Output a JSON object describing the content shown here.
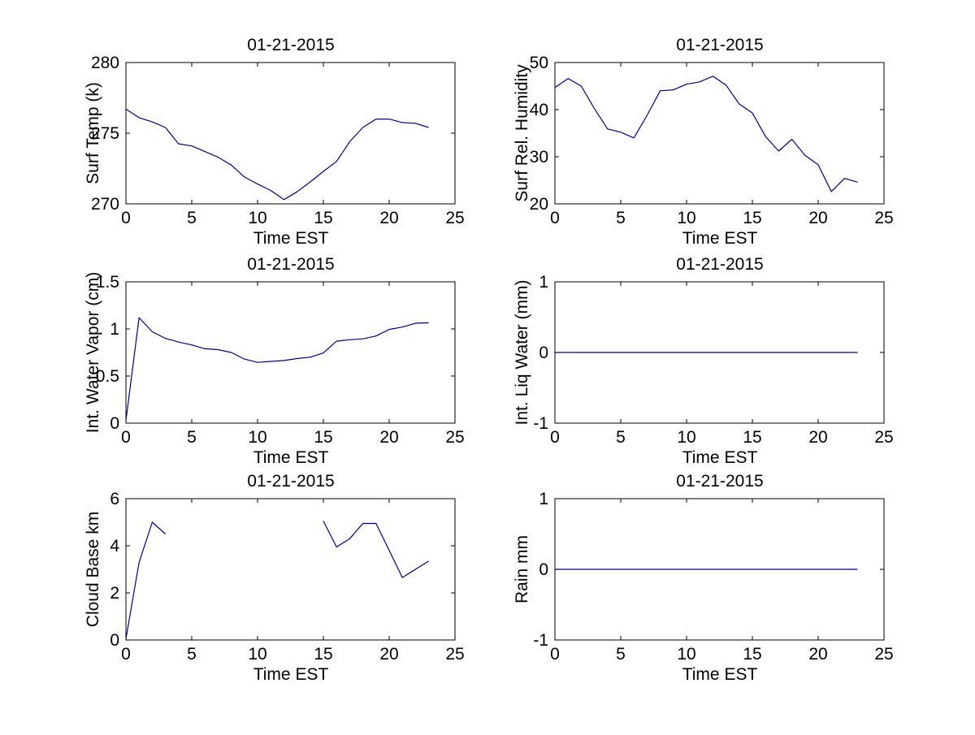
{
  "style": {
    "line_color": "#00008B",
    "axis_color": "#000000",
    "background": "#ffffff"
  },
  "chart_data": [
    {
      "id": "surf-temp",
      "type": "line",
      "title": "01-21-2015",
      "xlabel": "Time EST",
      "ylabel": "Surf Temp (k)",
      "xlim": [
        0,
        25
      ],
      "ylim": [
        270,
        280
      ],
      "xticks": [
        0,
        5,
        10,
        15,
        20,
        25
      ],
      "xtick_labels": [
        "0",
        "5",
        "10",
        "15",
        "20",
        "25"
      ],
      "yticks": [
        270,
        275,
        280
      ],
      "ytick_labels": [
        "270",
        "275",
        "280"
      ],
      "grid": false,
      "legend": null,
      "series": [
        {
          "name": "surface-temperature",
          "x": [
            0,
            1,
            2,
            3,
            4,
            5,
            6,
            7,
            8,
            9,
            10,
            11,
            12,
            13,
            14,
            15,
            16,
            17,
            18,
            19,
            20,
            21,
            22,
            23
          ],
          "y": [
            276.7,
            276.1,
            275.8,
            275.4,
            274.25,
            274.1,
            273.7,
            273.3,
            272.75,
            271.9,
            271.4,
            270.95,
            270.3,
            270.85,
            271.55,
            272.3,
            273.0,
            274.4,
            275.4,
            276.0,
            276.0,
            275.75,
            275.7,
            275.4
          ]
        }
      ]
    },
    {
      "id": "surf-rel-humidity",
      "type": "line",
      "title": "01-21-2015",
      "xlabel": "Time EST",
      "ylabel": "Surf Rel. Humidity",
      "xlim": [
        0,
        25
      ],
      "ylim": [
        20,
        50
      ],
      "xticks": [
        0,
        5,
        10,
        15,
        20,
        25
      ],
      "xtick_labels": [
        "0",
        "5",
        "10",
        "15",
        "20",
        "25"
      ],
      "yticks": [
        20,
        30,
        40,
        50
      ],
      "ytick_labels": [
        "20",
        "30",
        "40",
        "50"
      ],
      "grid": false,
      "legend": null,
      "series": [
        {
          "name": "surface-relative-humidity",
          "x": [
            0,
            1,
            2,
            3,
            4,
            5,
            6,
            7,
            8,
            9,
            10,
            11,
            12,
            13,
            14,
            15,
            16,
            17,
            18,
            19,
            20,
            21,
            22,
            23
          ],
          "y": [
            44.7,
            46.6,
            45.0,
            40.2,
            35.9,
            35.2,
            34.0,
            38.8,
            44.0,
            44.2,
            45.4,
            45.9,
            47.1,
            45.2,
            41.2,
            39.3,
            34.3,
            31.2,
            33.7,
            30.3,
            28.3,
            22.6,
            25.4,
            24.6
          ]
        }
      ]
    },
    {
      "id": "int-water-vapor",
      "type": "line",
      "title": "01-21-2015",
      "xlabel": "Time EST",
      "ylabel": "Int. Water Vapor (cm)",
      "xlim": [
        0,
        25
      ],
      "ylim": [
        0,
        1.5
      ],
      "xticks": [
        0,
        5,
        10,
        15,
        20,
        25
      ],
      "xtick_labels": [
        "0",
        "5",
        "10",
        "15",
        "20",
        "25"
      ],
      "yticks": [
        0,
        0.5,
        1,
        1.5
      ],
      "ytick_labels": [
        "0",
        "0.5",
        "1",
        "1.5"
      ],
      "grid": false,
      "legend": null,
      "series": [
        {
          "name": "integrated-water-vapor",
          "x": [
            0,
            1,
            2,
            3,
            4,
            5,
            6,
            7,
            8,
            9,
            10,
            11,
            12,
            13,
            14,
            15,
            16,
            17,
            18,
            19,
            20,
            21,
            22,
            23
          ],
          "y": [
            0.03,
            1.12,
            0.97,
            0.9,
            0.86,
            0.83,
            0.79,
            0.78,
            0.75,
            0.68,
            0.645,
            0.655,
            0.665,
            0.685,
            0.7,
            0.745,
            0.87,
            0.885,
            0.895,
            0.925,
            0.995,
            1.02,
            1.06,
            1.065
          ]
        }
      ]
    },
    {
      "id": "int-liq-water",
      "type": "line",
      "title": "01-21-2015",
      "xlabel": "Time EST",
      "ylabel": "Int. Liq Water (mm)",
      "xlim": [
        0,
        25
      ],
      "ylim": [
        -1,
        1
      ],
      "xticks": [
        0,
        5,
        10,
        15,
        20,
        25
      ],
      "xtick_labels": [
        "0",
        "5",
        "10",
        "15",
        "20",
        "25"
      ],
      "yticks": [
        -1,
        0,
        1
      ],
      "ytick_labels": [
        "-1",
        "0",
        "1"
      ],
      "grid": false,
      "legend": null,
      "series": [
        {
          "name": "integrated-liquid-water",
          "x": [
            0,
            1,
            2,
            3,
            4,
            5,
            6,
            7,
            8,
            9,
            10,
            11,
            12,
            13,
            14,
            15,
            16,
            17,
            18,
            19,
            20,
            21,
            22,
            23
          ],
          "y": [
            0,
            0,
            0,
            0,
            0,
            0,
            0,
            0,
            0,
            0,
            0,
            0,
            0,
            0,
            0,
            0,
            0,
            0,
            0,
            0,
            0,
            0,
            0,
            0
          ]
        }
      ]
    },
    {
      "id": "cloud-base",
      "type": "line",
      "title": "01-21-2015",
      "xlabel": "Time EST",
      "ylabel": "Cloud Base km",
      "xlim": [
        0,
        25
      ],
      "ylim": [
        0,
        6
      ],
      "xticks": [
        0,
        5,
        10,
        15,
        20,
        25
      ],
      "xtick_labels": [
        "0",
        "5",
        "10",
        "15",
        "20",
        "25"
      ],
      "yticks": [
        0,
        2,
        4,
        6
      ],
      "ytick_labels": [
        "0",
        "2",
        "4",
        "6"
      ],
      "grid": false,
      "legend": null,
      "series": [
        {
          "name": "cloud-base-early-segment",
          "x": [
            0,
            1,
            2,
            3
          ],
          "y": [
            0.05,
            3.3,
            5.0,
            4.5
          ]
        },
        {
          "name": "cloud-base-late-segment",
          "x": [
            15,
            16,
            17,
            18,
            19,
            20,
            21,
            22,
            23
          ],
          "y": [
            5.05,
            3.95,
            4.3,
            4.95,
            4.95,
            3.8,
            2.65,
            3.0,
            3.35
          ]
        }
      ]
    },
    {
      "id": "rain",
      "type": "line",
      "title": "01-21-2015",
      "xlabel": "Time EST",
      "ylabel": "Rain mm",
      "xlim": [
        0,
        25
      ],
      "ylim": [
        -1,
        1
      ],
      "xticks": [
        0,
        5,
        10,
        15,
        20,
        25
      ],
      "xtick_labels": [
        "0",
        "5",
        "10",
        "15",
        "20",
        "25"
      ],
      "yticks": [
        -1,
        0,
        1
      ],
      "ytick_labels": [
        "-1",
        "0",
        "1"
      ],
      "grid": false,
      "legend": null,
      "series": [
        {
          "name": "rain-amount",
          "x": [
            0,
            1,
            2,
            3,
            4,
            5,
            6,
            7,
            8,
            9,
            10,
            11,
            12,
            13,
            14,
            15,
            16,
            17,
            18,
            19,
            20,
            21,
            22,
            23
          ],
          "y": [
            0,
            0,
            0,
            0,
            0,
            0,
            0,
            0,
            0,
            0,
            0,
            0,
            0,
            0,
            0,
            0,
            0,
            0,
            0,
            0,
            0,
            0,
            0,
            0
          ]
        }
      ]
    }
  ]
}
